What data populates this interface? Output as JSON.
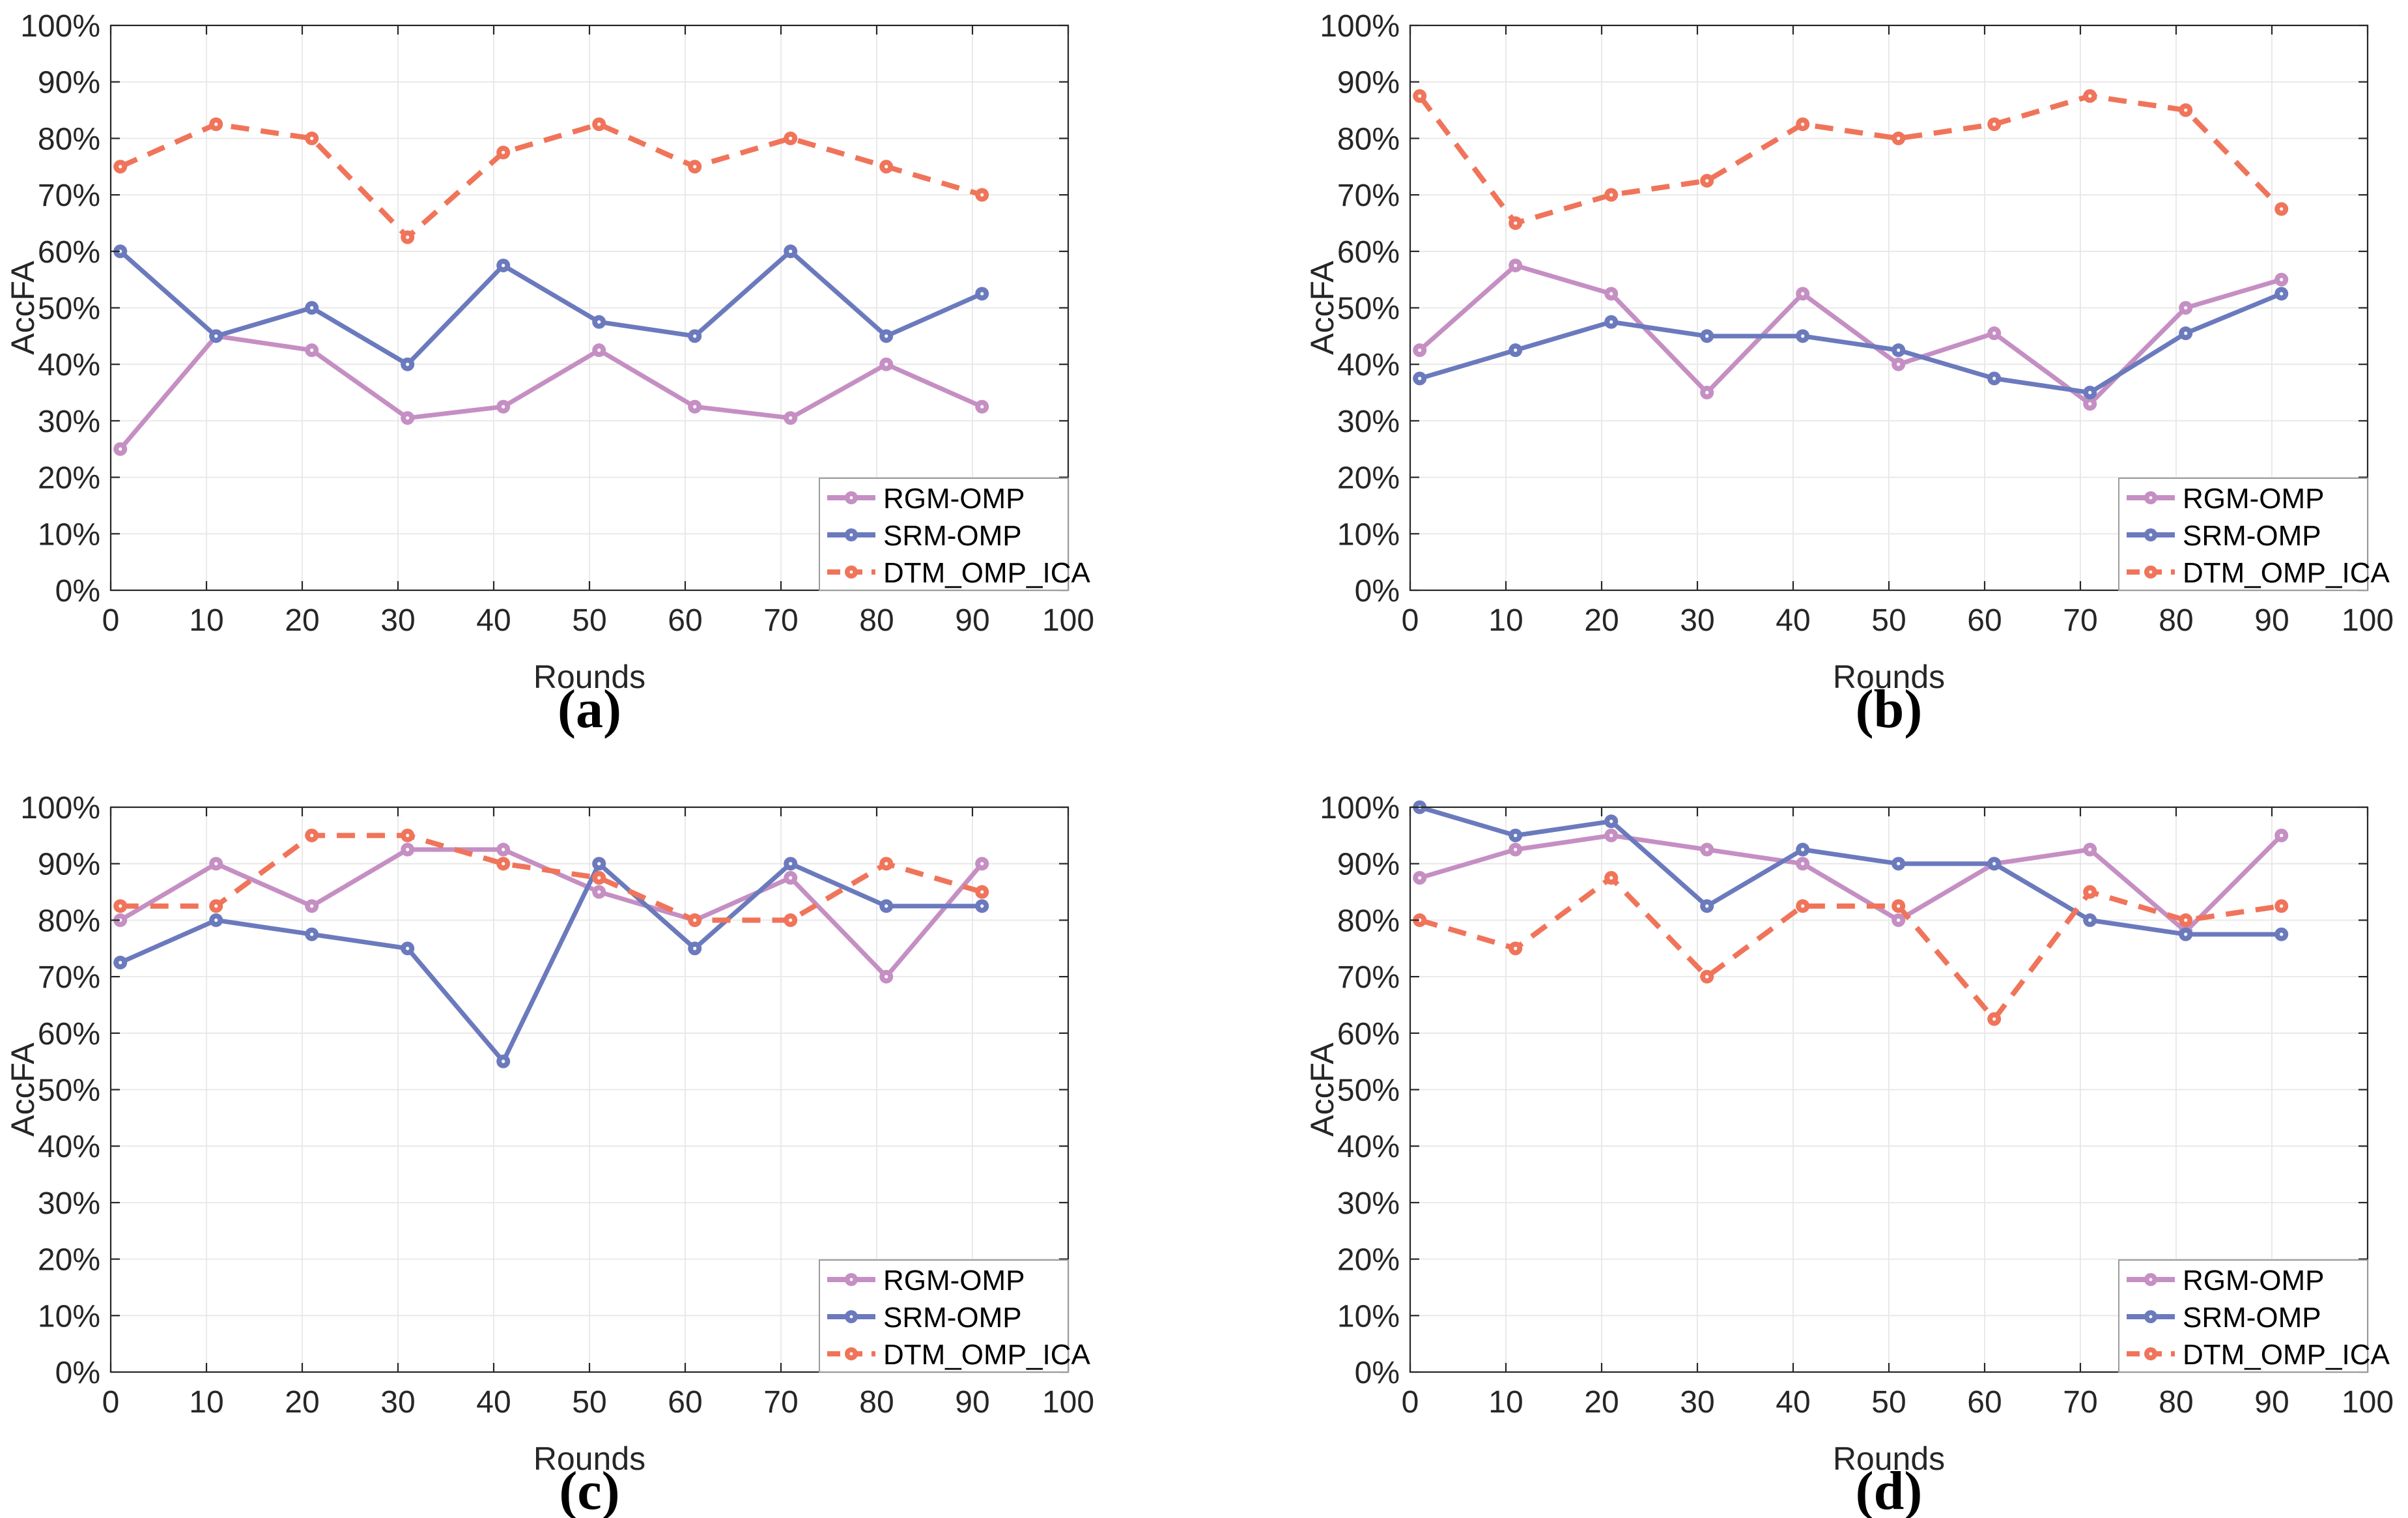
{
  "figure": {
    "background": "#ffffff",
    "axis_color": "#262626",
    "grid_color": "#e7e7e7",
    "legend_border_color": "#9a9a9a",
    "text_color": "#262626",
    "ylabel": "AccFA",
    "xlabel": "Rounds",
    "x_tick_labels": [
      "0",
      "10",
      "20",
      "30",
      "40",
      "50",
      "60",
      "70",
      "80",
      "90",
      "100"
    ],
    "y_tick_labels": [
      "0%",
      "10%",
      "20%",
      "30%",
      "40%",
      "50%",
      "60%",
      "70%",
      "80%",
      "90%",
      "100%"
    ],
    "series_styles": [
      {
        "name": "RGM-OMP",
        "color": "#c58fc3",
        "dash": null
      },
      {
        "name": "SRM-OMP",
        "color": "#6b7abd",
        "dash": null
      },
      {
        "name": "DTM_OMP_ICA",
        "color": "#f0745a",
        "dash": "28 18"
      }
    ]
  },
  "chart_data": [
    {
      "type": "line",
      "caption": "(a)",
      "xlabel": "Rounds",
      "ylabel": "AccFA",
      "xlim": [
        0,
        100
      ],
      "ylim": [
        0,
        100
      ],
      "grid": true,
      "legend_position": "bottom-right",
      "x": [
        1,
        11,
        21,
        31,
        41,
        51,
        61,
        71,
        81,
        91
      ],
      "series": [
        {
          "name": "RGM-OMP",
          "values": [
            25,
            45,
            42.5,
            30.5,
            32.5,
            42.5,
            32.5,
            30.5,
            40,
            32.5
          ]
        },
        {
          "name": "SRM-OMP",
          "values": [
            60,
            45,
            50,
            40,
            57.5,
            47.5,
            45,
            60,
            45,
            52.5
          ]
        },
        {
          "name": "DTM_OMP_ICA",
          "values": [
            75,
            82.5,
            80,
            62.5,
            77.5,
            82.5,
            75,
            80,
            75,
            70
          ]
        }
      ]
    },
    {
      "type": "line",
      "caption": "(b)",
      "xlabel": "Rounds",
      "ylabel": "AccFA",
      "xlim": [
        0,
        100
      ],
      "ylim": [
        0,
        100
      ],
      "grid": true,
      "legend_position": "bottom-right",
      "x": [
        1,
        11,
        21,
        31,
        41,
        51,
        61,
        71,
        81,
        91
      ],
      "series": [
        {
          "name": "RGM-OMP",
          "values": [
            42.5,
            57.5,
            52.5,
            35,
            52.5,
            40,
            45.5,
            33,
            50,
            55
          ]
        },
        {
          "name": "SRM-OMP",
          "values": [
            37.5,
            42.5,
            47.5,
            45,
            45,
            42.5,
            37.5,
            35,
            45.5,
            52.5
          ]
        },
        {
          "name": "DTM_OMP_ICA",
          "values": [
            87.5,
            65,
            70,
            72.5,
            82.5,
            80,
            82.5,
            87.5,
            85,
            67.5
          ]
        }
      ]
    },
    {
      "type": "line",
      "caption": "(c)",
      "xlabel": "Rounds",
      "ylabel": "AccFA",
      "xlim": [
        0,
        100
      ],
      "ylim": [
        0,
        100
      ],
      "grid": true,
      "legend_position": "bottom-right",
      "x": [
        1,
        11,
        21,
        31,
        41,
        51,
        61,
        71,
        81,
        91
      ],
      "series": [
        {
          "name": "RGM-OMP",
          "values": [
            80,
            90,
            82.5,
            92.5,
            92.5,
            85,
            80,
            87.5,
            70,
            90
          ]
        },
        {
          "name": "SRM-OMP",
          "values": [
            72.5,
            80,
            77.5,
            75,
            55,
            90,
            75,
            90,
            82.5,
            82.5
          ]
        },
        {
          "name": "DTM_OMP_ICA",
          "values": [
            82.5,
            82.5,
            95,
            95,
            90,
            87.5,
            80,
            80,
            90,
            85
          ]
        }
      ]
    },
    {
      "type": "line",
      "caption": "(d)",
      "xlabel": "Rounds",
      "ylabel": "AccFA",
      "xlim": [
        0,
        100
      ],
      "ylim": [
        0,
        100
      ],
      "grid": true,
      "legend_position": "bottom-right",
      "x": [
        1,
        11,
        21,
        31,
        41,
        51,
        61,
        71,
        81,
        91
      ],
      "series": [
        {
          "name": "RGM-OMP",
          "values": [
            87.5,
            92.5,
            95,
            92.5,
            90,
            80,
            90,
            92.5,
            78,
            95
          ]
        },
        {
          "name": "SRM-OMP",
          "values": [
            100,
            95,
            97.5,
            82.5,
            92.5,
            90,
            90,
            80,
            77.5,
            77.5
          ]
        },
        {
          "name": "DTM_OMP_ICA",
          "values": [
            80,
            75,
            87.5,
            70,
            82.5,
            82.5,
            62.5,
            85,
            80,
            82.5
          ]
        }
      ]
    }
  ]
}
